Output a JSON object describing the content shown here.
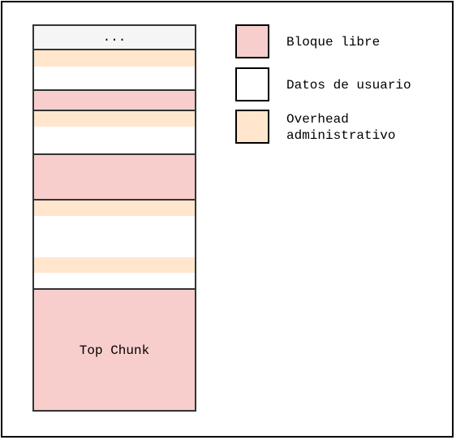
{
  "colors": {
    "free": "#f8cecc",
    "user": "#ffffff",
    "overhead": "#ffe6cc",
    "header": "#f5f5f5",
    "border": "#333333"
  },
  "memory": {
    "header_label": "...",
    "top_chunk_label": "Top Chunk",
    "blocks": [
      "header",
      "overhead",
      "user",
      "free",
      "overhead",
      "user",
      "free",
      "overhead",
      "user",
      "overhead",
      "user",
      "top-chunk"
    ]
  },
  "legend": {
    "free_label": "Bloque libre",
    "user_label": "Datos de usuario",
    "overhead_label": "Overhead\nadministrativo"
  }
}
